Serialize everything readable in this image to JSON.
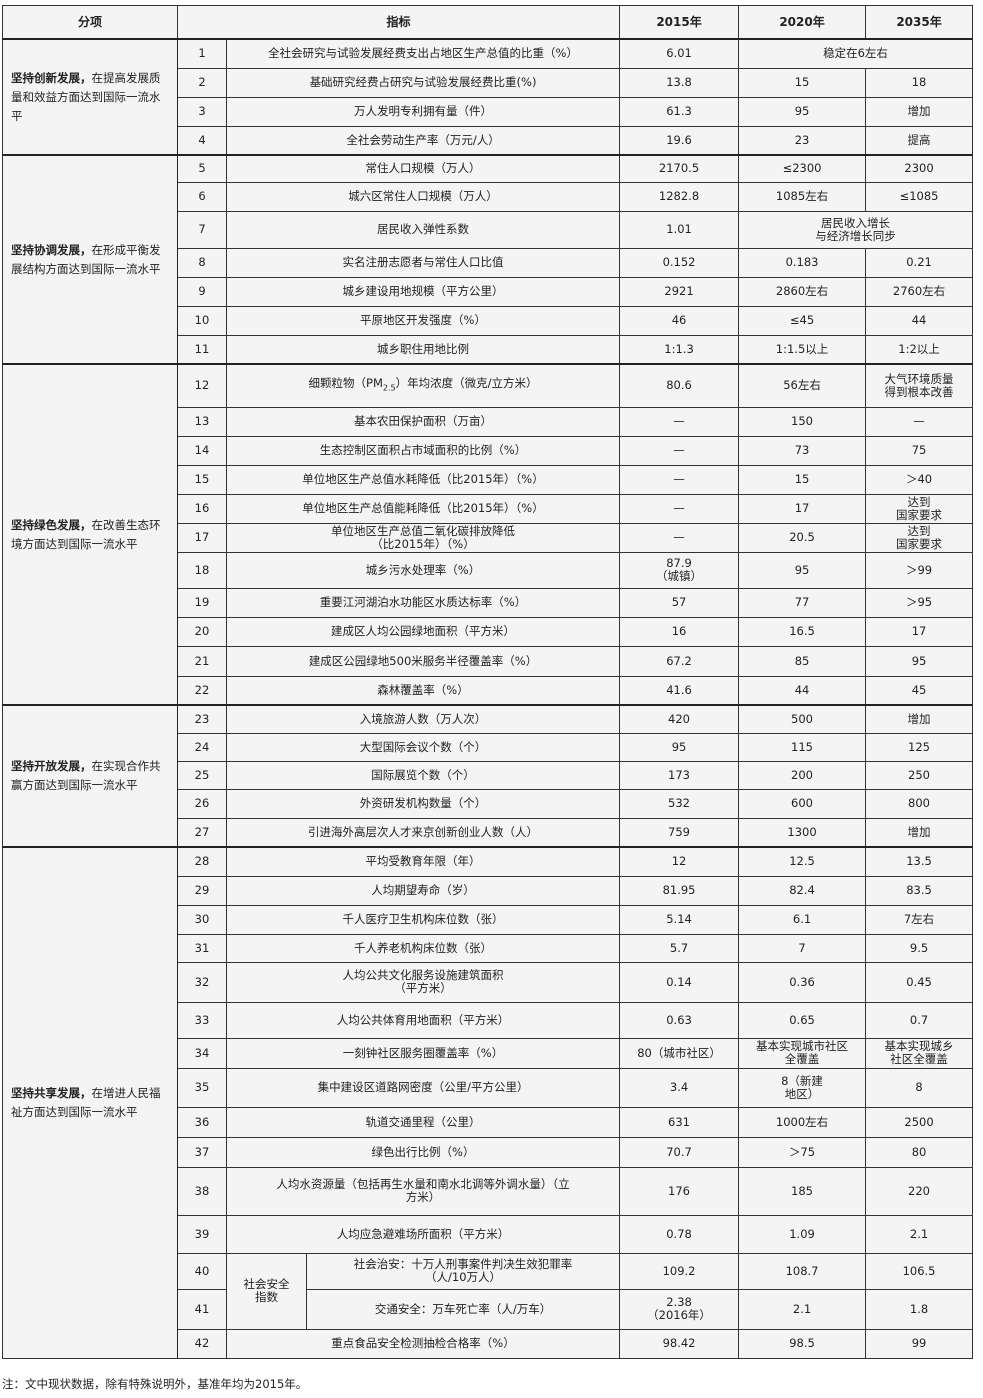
{
  "header": {
    "category": "分项",
    "indicator": "指标",
    "y2015": "2015年",
    "y2020": "2020年",
    "y2035": "2035年"
  },
  "groups": [
    {
      "bold": "坚持创新发展，",
      "rest": "在提高发展质量和效益方面达到国际一流水平",
      "rows": [
        [
          "1",
          "全社会研究与试验发展经费支出占地区生产总值的比重（%）",
          "6.01",
          "稳定在6左右",
          null
        ],
        [
          "2",
          "基础研究经费占研究与试验发展经费比重(%)",
          "13.8",
          "15",
          "18"
        ],
        [
          "3",
          "万人发明专利拥有量（件）",
          "61.3",
          "95",
          "增加"
        ],
        [
          "4",
          "全社会劳动生产率（万元/人）",
          "19.6",
          "23",
          "提高"
        ]
      ]
    },
    {
      "bold": "坚持协调发展，",
      "rest": "在形成平衡发展结构方面达到国际一流水平",
      "rows": [
        [
          "5",
          "常住人口规模（万人）",
          "2170.5",
          "≤2300",
          "2300"
        ],
        [
          "6",
          "城六区常住人口规模（万人）",
          "1282.8",
          "1085左右",
          "≤1085"
        ],
        [
          "7",
          "居民收入弹性系数",
          "1.01",
          "居民收入增长\n与经济增长同步",
          null
        ],
        [
          "8",
          "实名注册志愿者与常住人口比值",
          "0.152",
          "0.183",
          "0.21"
        ],
        [
          "9",
          "城乡建设用地规模（平方公里）",
          "2921",
          "2860左右",
          "2760左右"
        ],
        [
          "10",
          "平原地区开发强度（%）",
          "46",
          "≤45",
          "44"
        ],
        [
          "11",
          "城乡职住用地比例",
          "1:1.3",
          "1:1.5以上",
          "1:2以上"
        ]
      ]
    },
    {
      "bold": "坚持绿色发展，",
      "rest": "在改善生态环境方面达到国际一流水平",
      "rows": [
        [
          "12",
          "细颗粒物（PM|2.5|）年均浓度（微克/立方米）",
          "80.6",
          "56左右",
          "大气环境质量\n得到根本改善"
        ],
        [
          "13",
          "基本农田保护面积（万亩）",
          "—",
          "150",
          "—"
        ],
        [
          "14",
          "生态控制区面积占市域面积的比例（%）",
          "—",
          "73",
          "75"
        ],
        [
          "15",
          "单位地区生产总值水耗降低（比2015年）（%）",
          "—",
          "15",
          "＞40"
        ],
        [
          "16",
          "单位地区生产总值能耗降低（比2015年）（%）",
          "—",
          "17",
          "达到\n国家要求"
        ],
        [
          "17",
          "单位地区生产总值二氧化碳排放降低\n（比2015年）（%）",
          "—",
          "20.5",
          "达到\n国家要求"
        ],
        [
          "18",
          "城乡污水处理率（%）",
          "87.9\n（城镇）",
          "95",
          "＞99"
        ],
        [
          "19",
          "重要江河湖泊水功能区水质达标率（%）",
          "57",
          "77",
          "＞95"
        ],
        [
          "20",
          "建成区人均公园绿地面积（平方米）",
          "16",
          "16.5",
          "17"
        ],
        [
          "21",
          "建成区公园绿地500米服务半径覆盖率（%）",
          "67.2",
          "85",
          "95"
        ],
        [
          "22",
          "森林覆盖率（%）",
          "41.6",
          "44",
          "45"
        ]
      ]
    },
    {
      "bold": "坚持开放发展，",
      "rest": "在实现合作共赢方面达到国际一流水平",
      "rows": [
        [
          "23",
          "入境旅游人数（万人次）",
          "420",
          "500",
          "增加"
        ],
        [
          "24",
          "大型国际会议个数（个）",
          "95",
          "115",
          "125"
        ],
        [
          "25",
          "国际展览个数（个）",
          "173",
          "200",
          "250"
        ],
        [
          "26",
          "外资研发机构数量（个）",
          "532",
          "600",
          "800"
        ],
        [
          "27",
          "引进海外高层次人才来京创新创业人数（人）",
          "759",
          "1300",
          "增加"
        ]
      ]
    },
    {
      "bold": "坚持共享发展，",
      "rest": "在增进人民福祉方面达到国际一流水平",
      "rows": [
        [
          "28",
          "平均受教育年限（年）",
          "12",
          "12.5",
          "13.5"
        ],
        [
          "29",
          "人均期望寿命（岁）",
          "81.95",
          "82.4",
          "83.5"
        ],
        [
          "30",
          "千人医疗卫生机构床位数（张）",
          "5.14",
          "6.1",
          "7左右"
        ],
        [
          "31",
          "千人养老机构床位数（张）",
          "5.7",
          "7",
          "9.5"
        ],
        [
          "32",
          "人均公共文化服务设施建筑面积\n（平方米）",
          "0.14",
          "0.36",
          "0.45"
        ],
        [
          "33",
          "人均公共体育用地面积（平方米）",
          "0.63",
          "0.65",
          "0.7"
        ],
        [
          "34",
          "一刻钟社区服务圈覆盖率（%）",
          "80（城市社区）",
          "基本实现城市社区\n全覆盖",
          "基本实现城乡\n社区全覆盖"
        ],
        [
          "35",
          "集中建设区道路网密度（公里/平方公里）",
          "3.4",
          "8（新建\n地区）",
          "8"
        ],
        [
          "36",
          "轨道交通里程（公里）",
          "631",
          "1000左右",
          "2500"
        ],
        [
          "37",
          "绿色出行比例（%）",
          "70.7",
          "＞75",
          "80"
        ],
        [
          "38",
          "人均水资源量（包括再生水量和南水北调等外调水量）（立\n方米）",
          "176",
          "185",
          "220"
        ],
        [
          "39",
          "人均应急避难场所面积（平方米）",
          "0.78",
          "1.09",
          "2.1"
        ],
        [
          "40",
          "社会治安：十万人刑事案件判决生效犯罪率\n（人/10万人）",
          "109.2",
          "108.7",
          "106.5"
        ],
        [
          "41",
          "交通安全：万车死亡率（人/万车）",
          "2.38\n（2016年）",
          "2.1",
          "1.8"
        ],
        [
          "42",
          "重点食品安全检测抽检合格率（%）",
          "98.42",
          "98.5",
          "99"
        ]
      ]
    }
  ],
  "social_safety_label": "社会安全\n指数",
  "note": "注：文中现状数据，除有特殊说明外，基准年均为2015年。"
}
